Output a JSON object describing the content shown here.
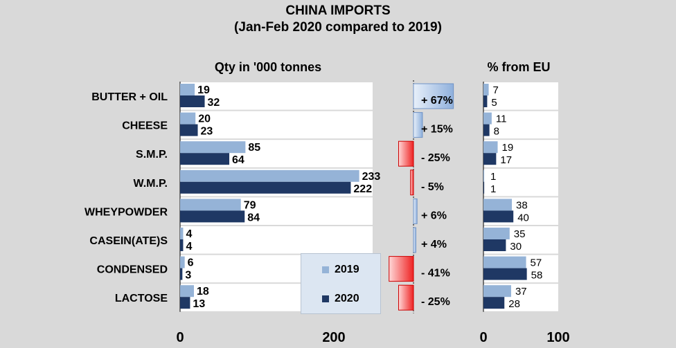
{
  "title": [
    "CHINA IMPORTS",
    "(Jan-Feb 2020 compared to 2019)"
  ],
  "colors": {
    "y2019": "#95b3d7",
    "y2020": "#1f3864",
    "up": "#c5d9f1",
    "down": "#ff6666",
    "bg": "#d9d9d9"
  },
  "legend": [
    {
      "label": "2019"
    },
    {
      "label": "2020"
    }
  ],
  "chart_data": [
    {
      "type": "bar",
      "title": "Qty in '000 tonnes",
      "orientation": "horizontal",
      "categories": [
        "BUTTER + OIL",
        "CHEESE",
        "S.M.P.",
        "W.M.P.",
        "WHEYPOWDER",
        "CASEIN(ATE)S",
        "CONDENSED",
        "LACTOSE"
      ],
      "series": [
        {
          "name": "2019",
          "values": [
            19,
            20,
            85,
            233,
            79,
            4,
            6,
            18
          ]
        },
        {
          "name": "2020",
          "values": [
            32,
            23,
            64,
            222,
            84,
            4,
            3,
            13
          ]
        }
      ],
      "xlim": [
        0,
        250
      ],
      "xticks": [
        "0",
        "200"
      ],
      "changes": [
        67,
        15,
        -25,
        -5,
        6,
        4,
        -41,
        -25
      ],
      "change_labels": [
        "+ 67%",
        "+ 15%",
        "- 25%",
        "- 5%",
        "+ 6%",
        "+ 4%",
        "- 41%",
        "- 25%"
      ]
    },
    {
      "type": "bar",
      "title": "% from EU",
      "orientation": "horizontal",
      "categories": [
        "BUTTER + OIL",
        "CHEESE",
        "S.M.P.",
        "W.M.P.",
        "WHEYPOWDER",
        "CASEIN(ATE)S",
        "CONDENSED",
        "LACTOSE"
      ],
      "series": [
        {
          "name": "2019",
          "values": [
            7,
            11,
            19,
            1,
            38,
            35,
            57,
            37
          ]
        },
        {
          "name": "2020",
          "values": [
            5,
            8,
            17,
            1,
            40,
            30,
            58,
            28
          ]
        }
      ],
      "xlim": [
        0,
        100
      ],
      "xticks": [
        "0",
        "100"
      ]
    }
  ]
}
